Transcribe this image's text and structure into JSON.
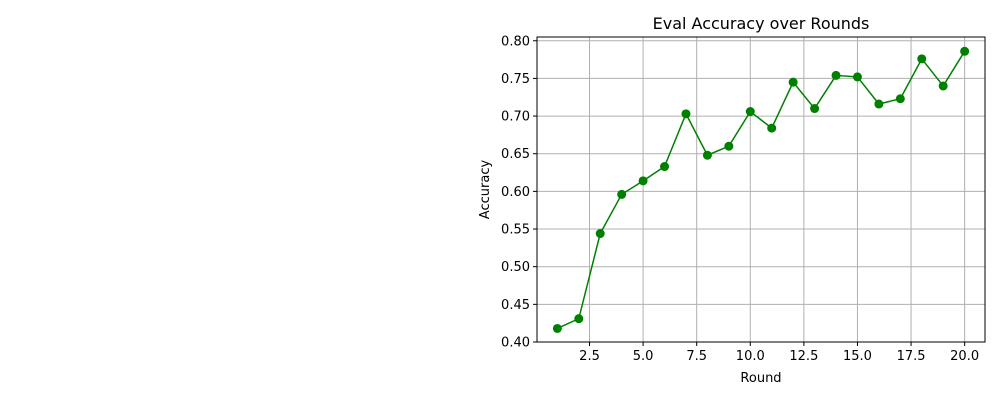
{
  "chart_data": {
    "type": "line",
    "title": "Eval Accuracy over Rounds",
    "xlabel": "Round",
    "ylabel": "Accuracy",
    "xlim": [
      0.05,
      20.95
    ],
    "ylim": [
      0.4,
      0.805
    ],
    "grid": true,
    "x_ticks": [
      2.5,
      5.0,
      7.5,
      10.0,
      12.5,
      15.0,
      17.5,
      20.0
    ],
    "x_tick_labels": [
      "2.5",
      "5.0",
      "7.5",
      "10.0",
      "12.5",
      "15.0",
      "17.5",
      "20.0"
    ],
    "y_ticks": [
      0.4,
      0.45,
      0.5,
      0.55,
      0.6,
      0.65,
      0.7,
      0.75,
      0.8
    ],
    "y_tick_labels": [
      "0.40",
      "0.45",
      "0.50",
      "0.55",
      "0.60",
      "0.65",
      "0.70",
      "0.75",
      "0.80"
    ],
    "series": [
      {
        "color": "#008000",
        "marker": "circle",
        "x": [
          1,
          2,
          3,
          4,
          5,
          6,
          7,
          8,
          9,
          10,
          11,
          12,
          13,
          14,
          15,
          16,
          17,
          18,
          19,
          20
        ],
        "y": [
          0.418,
          0.431,
          0.544,
          0.596,
          0.614,
          0.633,
          0.703,
          0.648,
          0.66,
          0.706,
          0.684,
          0.745,
          0.71,
          0.754,
          0.752,
          0.716,
          0.723,
          0.776,
          0.74,
          0.786
        ]
      }
    ]
  }
}
